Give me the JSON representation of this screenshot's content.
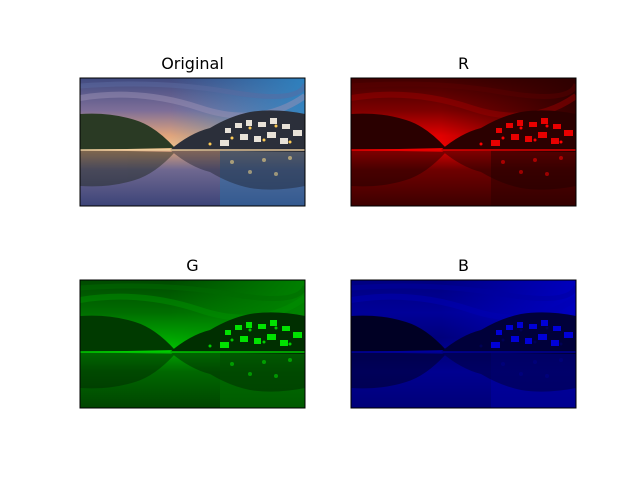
{
  "panels": [
    {
      "title": "Original"
    },
    {
      "title": "R"
    },
    {
      "title": "G"
    },
    {
      "title": "B"
    }
  ]
}
